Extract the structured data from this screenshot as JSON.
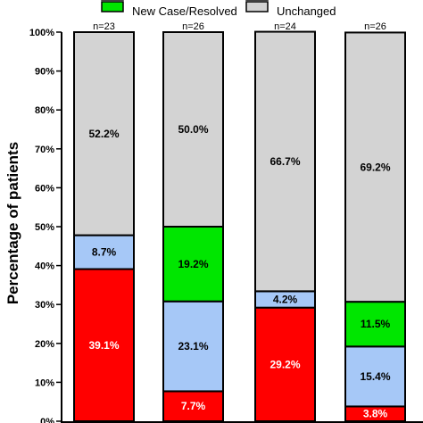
{
  "chart_data": {
    "type": "bar",
    "stacked": true,
    "ylabel": "Percentage of patients",
    "ylim": [
      0,
      100
    ],
    "y_ticks": [
      "0%",
      "10%",
      "20%",
      "30%",
      "40%",
      "50%",
      "60%",
      "70%",
      "80%",
      "90%",
      "100%"
    ],
    "legend": {
      "placement": "top",
      "entries": [
        {
          "name": "New Case/Resolved",
          "color": "#00e600"
        },
        {
          "name": "Unchanged",
          "color": "#d3d3d3"
        }
      ]
    },
    "bar_labels": [
      "n=23",
      "n=26",
      "n=24",
      "n=26"
    ],
    "series": [
      {
        "key": "red",
        "color": "#ff0000",
        "values": [
          39.1,
          7.7,
          29.2,
          3.8
        ],
        "labels": [
          "39.1%",
          "7.7%",
          "29.2%",
          "3.8%"
        ]
      },
      {
        "key": "blue",
        "color": "#a6c8f7",
        "values": [
          8.7,
          23.1,
          4.2,
          15.4
        ],
        "labels": [
          "8.7%",
          "23.1%",
          "4.2%",
          "15.4%"
        ]
      },
      {
        "key": "green",
        "name": "New Case/Resolved",
        "color": "#00e600",
        "values": [
          0,
          19.2,
          0,
          11.5
        ],
        "labels": [
          "",
          "19.2%",
          "",
          "11.5%"
        ]
      },
      {
        "key": "grey",
        "name": "Unchanged",
        "color": "#d3d3d3",
        "values": [
          52.2,
          50.0,
          66.7,
          69.2
        ],
        "labels": [
          "52.2%",
          "50.0%",
          "66.7%",
          "69.2%"
        ]
      }
    ]
  }
}
